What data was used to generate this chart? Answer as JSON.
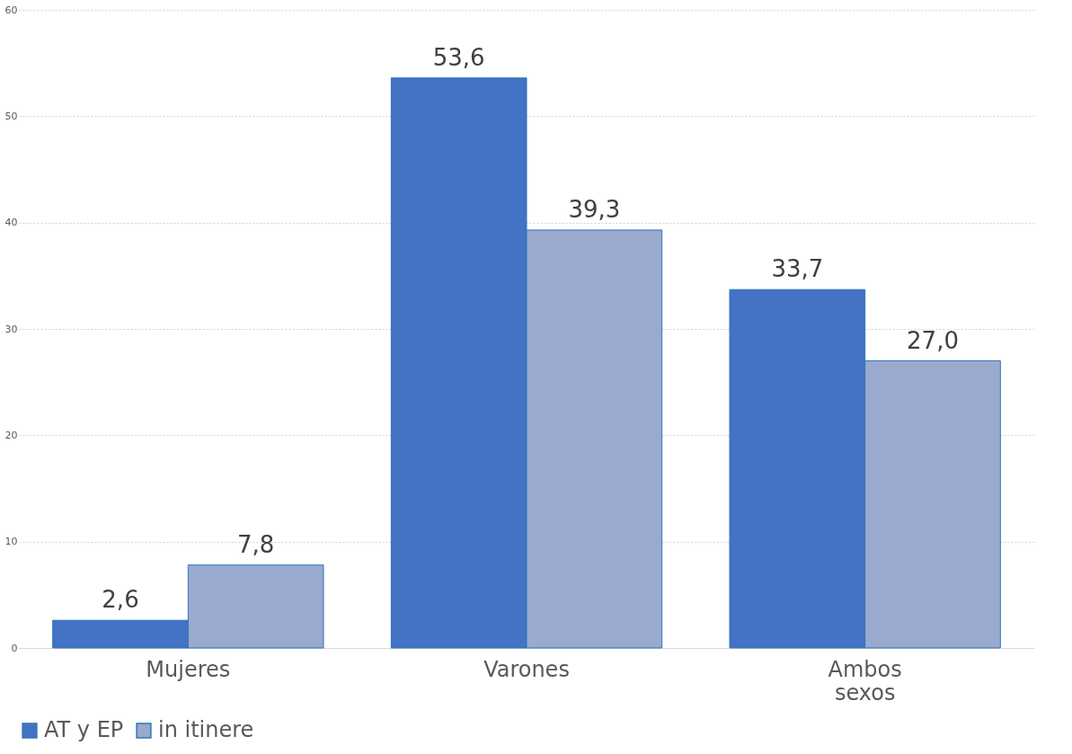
{
  "chart_data": {
    "type": "bar",
    "categories": [
      "Mujeres",
      "Varones",
      "Ambos sexos"
    ],
    "series": [
      {
        "name": "AT y EP",
        "color": "#4472c4",
        "values": [
          2.6,
          53.6,
          33.7
        ]
      },
      {
        "name": "in itinere",
        "color": "#9aaace",
        "values": [
          7.8,
          39.3,
          27.0
        ]
      }
    ],
    "value_labels": [
      [
        "2,6",
        "53,6",
        "33,7"
      ],
      [
        "7,8",
        "39,3",
        "27,0"
      ]
    ],
    "ylim": [
      0,
      60
    ],
    "yticks": [
      0,
      10,
      20,
      30,
      40,
      50,
      60
    ],
    "grid": "y",
    "legend": "bottom"
  }
}
